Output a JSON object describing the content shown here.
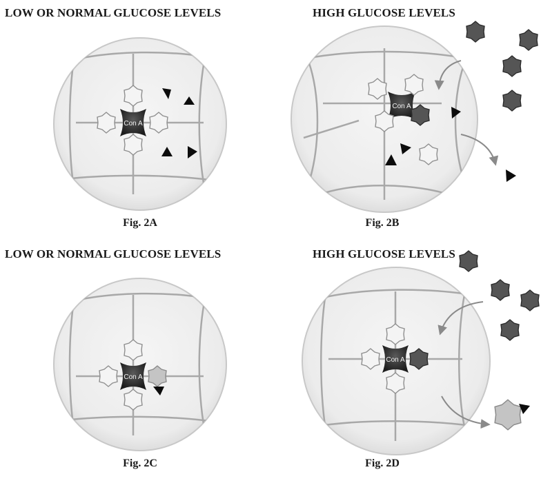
{
  "panels": [
    {
      "heading": "LOW OR NORMAL GLUCOSE LEVELS",
      "caption": "Fig. 2A",
      "con_a": "Con A"
    },
    {
      "heading": "HIGH GLUCOSE LEVELS",
      "caption": "Fig. 2B",
      "con_a": "Con A"
    },
    {
      "heading": "LOW OR NORMAL GLUCOSE LEVELS",
      "caption": "Fig. 2C",
      "con_a": "Con A"
    },
    {
      "heading": "HIGH GLUCOSE LEVELS",
      "caption": "Fig. 2D",
      "con_a": "Con A"
    }
  ],
  "colors": {
    "sphere_fill": "#eeeeee",
    "sphere_outline": "#c8c8c8",
    "mesh_line": "#a8a8a8",
    "con_a_dark": "#2a2a2a",
    "light_sugar": "#f4f4f4",
    "glucose_dark": "#555555",
    "drug_black": "#0c0c0c",
    "arrow": "#8a8a8a"
  }
}
